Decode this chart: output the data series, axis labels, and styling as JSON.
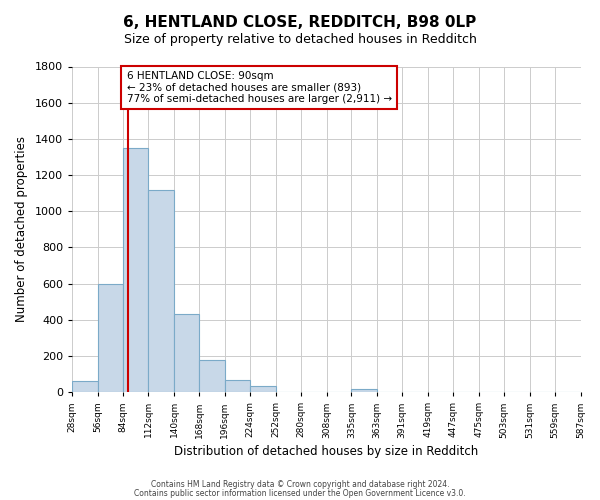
{
  "title": "6, HENTLAND CLOSE, REDDITCH, B98 0LP",
  "subtitle": "Size of property relative to detached houses in Redditch",
  "xlabel": "Distribution of detached houses by size in Redditch",
  "ylabel": "Number of detached properties",
  "bin_edges": [
    28,
    56,
    84,
    112,
    140,
    168,
    196,
    224,
    252,
    280,
    308,
    335,
    363,
    391,
    419,
    447,
    475,
    503,
    531,
    559,
    587
  ],
  "bin_labels": [
    "28sqm",
    "56sqm",
    "84sqm",
    "112sqm",
    "140sqm",
    "168sqm",
    "196sqm",
    "224sqm",
    "252sqm",
    "280sqm",
    "308sqm",
    "335sqm",
    "363sqm",
    "391sqm",
    "419sqm",
    "447sqm",
    "475sqm",
    "503sqm",
    "531sqm",
    "559sqm",
    "587sqm"
  ],
  "bar_heights": [
    60,
    600,
    1350,
    1120,
    430,
    175,
    65,
    35,
    0,
    0,
    0,
    20,
    0,
    0,
    0,
    0,
    0,
    0,
    0,
    0
  ],
  "bar_color": "#c8d8e8",
  "bar_edgecolor": "#7baac8",
  "ylim": [
    0,
    1800
  ],
  "yticks": [
    0,
    200,
    400,
    600,
    800,
    1000,
    1200,
    1400,
    1600,
    1800
  ],
  "property_line_x": 90,
  "property_line_color": "#cc0000",
  "annotation_title": "6 HENTLAND CLOSE: 90sqm",
  "annotation_line1": "← 23% of detached houses are smaller (893)",
  "annotation_line2": "77% of semi-detached houses are larger (2,911) →",
  "annotation_box_color": "#cc0000",
  "footer_line1": "Contains HM Land Registry data © Crown copyright and database right 2024.",
  "footer_line2": "Contains public sector information licensed under the Open Government Licence v3.0.",
  "background_color": "#ffffff",
  "grid_color": "#cccccc"
}
